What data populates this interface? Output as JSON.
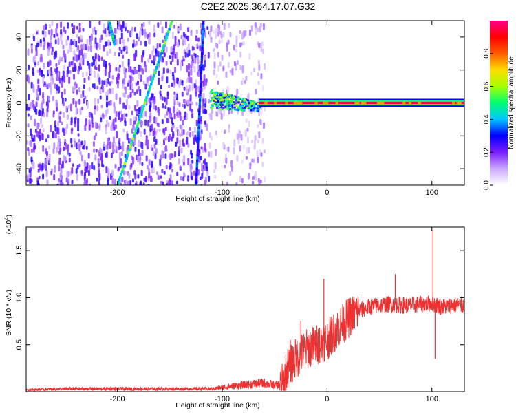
{
  "title": "C2E2.2025.364.17.07.G32",
  "chart_data": [
    {
      "type": "heatmap",
      "xlabel": "Height of straight line (km)",
      "ylabel": "Frequency (Hz)",
      "xlim": [
        -287,
        131
      ],
      "ylim": [
        -50,
        50
      ],
      "x_ticks": [
        -200,
        -100,
        0,
        100
      ],
      "y_ticks": [
        -40,
        -20,
        0,
        20,
        40
      ],
      "colorbar": {
        "label": "Normalized spectral amplitude",
        "range": [
          0.0,
          1.0
        ],
        "ticks": [
          "0.0",
          "0.2",
          "0.4",
          "0.6",
          "0.8"
        ],
        "colors": [
          "#ffffff",
          "#c9a6ff",
          "#7a1cff",
          "#0000ff",
          "#00c8ff",
          "#00ff70",
          "#a8ff00",
          "#ffdc00",
          "#ff5a00",
          "#ff0000",
          "#ff0090"
        ]
      },
      "features": [
        {
          "kind": "noise",
          "x_range": [
            -287,
            -113
          ],
          "level": 0.22
        },
        {
          "kind": "sparse-noise",
          "x_range": [
            -113,
            -60
          ],
          "level": 0.12
        },
        {
          "kind": "streak",
          "from": [
            -208,
            50
          ],
          "to": [
            -203,
            36
          ],
          "level": 0.4
        },
        {
          "kind": "streak",
          "from": [
            -148,
            50
          ],
          "to": [
            -200,
            -50
          ],
          "level": 0.45
        },
        {
          "kind": "streak",
          "from": [
            -118,
            50
          ],
          "to": [
            -125,
            -50
          ],
          "level": 0.28
        },
        {
          "kind": "cluster",
          "x_range": [
            -112,
            -65
          ],
          "center_y": 3,
          "spread_y": 6,
          "level": 0.5
        },
        {
          "kind": "band",
          "x_range": [
            -65,
            131
          ],
          "y": 0,
          "level": 0.92
        }
      ]
    },
    {
      "type": "line",
      "xlabel": "Height of straight line (km)",
      "ylabel": "SNR (10 * v/v)",
      "y_multiplier_label": "(x10",
      "y_multiplier_exp": "4",
      "xlim": [
        -287,
        131
      ],
      "ylim": [
        0,
        1.75
      ],
      "x_ticks": [
        -200,
        -100,
        0,
        100
      ],
      "y_ticks": [
        0.5,
        1.0,
        1.5
      ],
      "y_tick_labels": [
        "0.5",
        "1.0",
        "1.5"
      ],
      "color": "#ee3030",
      "x": [
        -287,
        -250,
        -200,
        -150,
        -110,
        -90,
        -70,
        -60,
        -50,
        -42,
        -38,
        -30,
        -20,
        -10,
        0,
        10,
        20,
        30,
        40,
        50,
        60,
        70,
        80,
        90,
        100,
        110,
        120,
        131
      ],
      "y": [
        0.02,
        0.03,
        0.03,
        0.03,
        0.03,
        0.06,
        0.08,
        0.09,
        0.07,
        0.08,
        0.25,
        0.35,
        0.45,
        0.5,
        0.55,
        0.67,
        0.78,
        0.86,
        0.9,
        0.92,
        0.93,
        0.92,
        0.92,
        0.93,
        0.94,
        0.9,
        0.92,
        0.92
      ],
      "spikes": [
        {
          "x": -35,
          "y": 0.55
        },
        {
          "x": -25,
          "y": 0.75
        },
        {
          "x": -3,
          "y": 1.2
        },
        {
          "x": 65,
          "y": 1.25
        },
        {
          "x": 101,
          "y": 1.72
        },
        {
          "x": 103,
          "y": 0.35
        }
      ]
    }
  ]
}
